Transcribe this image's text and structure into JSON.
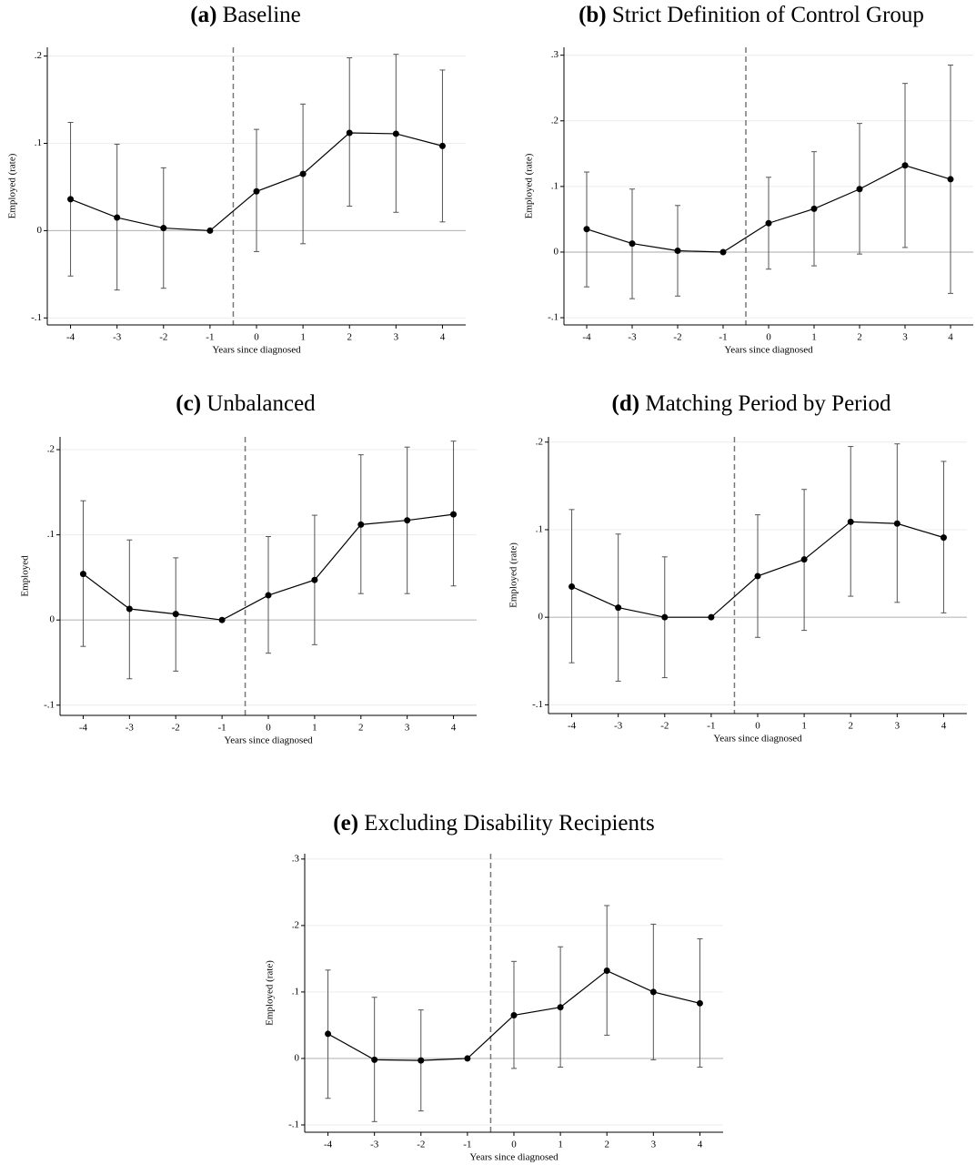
{
  "chart_data": [
    {
      "type": "line",
      "label": "(a)",
      "title": "Baseline",
      "xlabel": "Years since diagnosed",
      "ylabel": "Employed (rate)",
      "x": [
        -4,
        -3,
        -2,
        -1,
        0,
        1,
        2,
        3,
        4
      ],
      "values": [
        0.036,
        0.015,
        0.003,
        0,
        0.045,
        0.065,
        0.112,
        0.111,
        0.097
      ],
      "lower": [
        -0.052,
        -0.068,
        -0.066,
        0,
        -0.024,
        -0.015,
        0.028,
        0.021,
        0.01
      ],
      "upper": [
        0.124,
        0.099,
        0.072,
        0,
        0.116,
        0.145,
        0.198,
        0.202,
        0.184
      ],
      "color": "#000000",
      "xlim": [
        -4.5,
        4.5
      ],
      "ylim": [
        -0.108,
        0.21
      ],
      "xticks": [
        -4,
        -3,
        -2,
        -1,
        0,
        1,
        2,
        3,
        4
      ],
      "yticks": [
        {
          "value": -0.1,
          "label": "-.1"
        },
        0,
        {
          "value": 0.1,
          "label": ".1"
        },
        {
          "value": 0.2,
          "label": ".2"
        }
      ],
      "grid": true,
      "vline": -0.5,
      "hline": 0
    },
    {
      "type": "line",
      "label": "(b)",
      "title": "Strict Definition of Control Group",
      "xlabel": "Years since diagnosed",
      "ylabel": "Employed (rate)",
      "x": [
        -4,
        -3,
        -2,
        -1,
        0,
        1,
        2,
        3,
        4
      ],
      "values": [
        0.035,
        0.013,
        0.002,
        0,
        0.044,
        0.066,
        0.096,
        0.132,
        0.111
      ],
      "lower": [
        -0.053,
        -0.071,
        -0.067,
        0,
        -0.026,
        -0.021,
        -0.003,
        0.007,
        -0.063
      ],
      "upper": [
        0.122,
        0.096,
        0.071,
        0,
        0.114,
        0.153,
        0.196,
        0.257,
        0.285
      ],
      "color": "#000000",
      "xlim": [
        -4.5,
        4.5
      ],
      "ylim": [
        -0.111,
        0.312
      ],
      "xticks": [
        -4,
        -3,
        -2,
        -1,
        0,
        1,
        2,
        3,
        4
      ],
      "yticks": [
        {
          "value": -0.1,
          "label": "-.1"
        },
        0,
        {
          "value": 0.1,
          "label": ".1"
        },
        {
          "value": 0.2,
          "label": ".2"
        },
        {
          "value": 0.3,
          "label": ".3"
        }
      ],
      "grid": true,
      "vline": -0.5,
      "hline": 0
    },
    {
      "type": "line",
      "label": "(c)",
      "title": "Unbalanced",
      "xlabel": "Years since diagnosed",
      "ylabel": "Employed",
      "x": [
        -4,
        -3,
        -2,
        -1,
        0,
        1,
        2,
        3,
        4
      ],
      "values": [
        0.054,
        0.013,
        0.007,
        0,
        0.029,
        0.047,
        0.112,
        0.117,
        0.124
      ],
      "lower": [
        -0.031,
        -0.069,
        -0.06,
        0,
        -0.039,
        -0.029,
        0.031,
        0.031,
        0.04
      ],
      "upper": [
        0.14,
        0.094,
        0.073,
        0,
        0.098,
        0.123,
        0.194,
        0.203,
        0.21
      ],
      "color": "#000000",
      "xlim": [
        -4.5,
        4.5
      ],
      "ylim": [
        -0.112,
        0.215
      ],
      "xticks": [
        -4,
        -3,
        -2,
        -1,
        0,
        1,
        2,
        3,
        4
      ],
      "yticks": [
        {
          "value": -0.1,
          "label": "-.1"
        },
        0,
        {
          "value": 0.1,
          "label": ".1"
        },
        {
          "value": 0.2,
          "label": ".2"
        }
      ],
      "grid": true,
      "vline": -0.5,
      "hline": 0
    },
    {
      "type": "line",
      "label": "(d)",
      "title": "Matching Period by Period",
      "xlabel": "Years since diagnosed",
      "ylabel": "Employed (rate)",
      "x": [
        -4,
        -3,
        -2,
        -1,
        0,
        1,
        2,
        3,
        4
      ],
      "values": [
        0.035,
        0.011,
        0.0,
        0,
        0.047,
        0.066,
        0.109,
        0.107,
        0.091
      ],
      "lower": [
        -0.052,
        -0.073,
        -0.069,
        0,
        -0.023,
        -0.015,
        0.024,
        0.017,
        0.005
      ],
      "upper": [
        0.123,
        0.095,
        0.069,
        0,
        0.117,
        0.146,
        0.195,
        0.198,
        0.178
      ],
      "color": "#000000",
      "xlim": [
        -4.5,
        4.5
      ],
      "ylim": [
        -0.11,
        0.206
      ],
      "xticks": [
        -4,
        -3,
        -2,
        -1,
        0,
        1,
        2,
        3,
        4
      ],
      "yticks": [
        {
          "value": -0.1,
          "label": "-.1"
        },
        0,
        {
          "value": 0.1,
          "label": ".1"
        },
        {
          "value": 0.2,
          "label": ".2"
        }
      ],
      "grid": true,
      "vline": -0.5,
      "hline": 0
    },
    {
      "type": "line",
      "label": "(e)",
      "title": "Excluding Disability Recipients",
      "xlabel": "Years since diagnosed",
      "ylabel": "Employed (rate)",
      "x": [
        -4,
        -3,
        -2,
        -1,
        0,
        1,
        2,
        3,
        4
      ],
      "values": [
        0.037,
        -0.002,
        -0.003,
        0,
        0.065,
        0.077,
        0.132,
        0.1,
        0.083
      ],
      "lower": [
        -0.06,
        -0.095,
        -0.079,
        0,
        -0.015,
        -0.013,
        0.035,
        -0.002,
        -0.013
      ],
      "upper": [
        0.133,
        0.092,
        0.073,
        0,
        0.146,
        0.168,
        0.23,
        0.202,
        0.18
      ],
      "color": "#000000",
      "xlim": [
        -4.5,
        4.5
      ],
      "ylim": [
        -0.111,
        0.308
      ],
      "xticks": [
        -4,
        -3,
        -2,
        -1,
        0,
        1,
        2,
        3,
        4
      ],
      "yticks": [
        {
          "value": -0.1,
          "label": "-.1"
        },
        0,
        {
          "value": 0.1,
          "label": ".1"
        },
        {
          "value": 0.2,
          "label": ".2"
        },
        {
          "value": 0.3,
          "label": ".3"
        }
      ],
      "grid": true,
      "vline": -0.5,
      "hline": 0
    }
  ]
}
